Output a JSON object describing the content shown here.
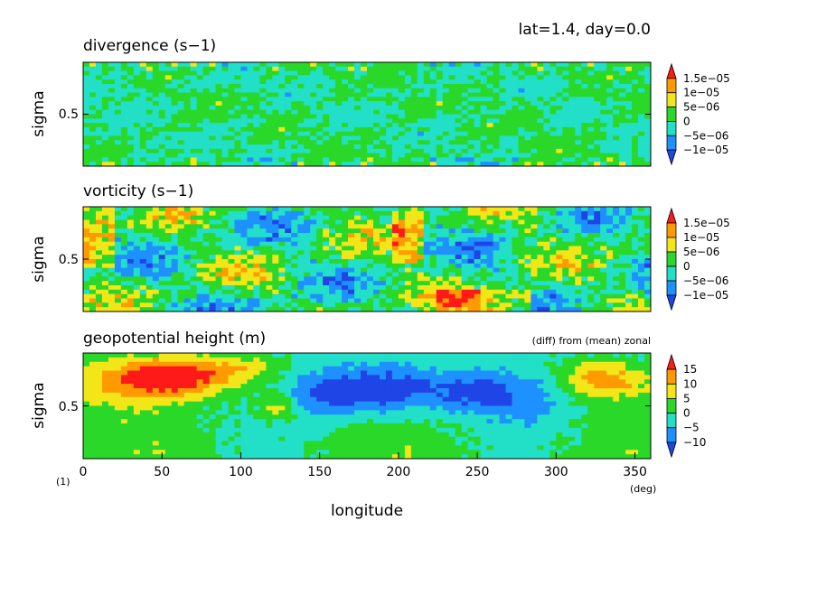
{
  "header": {
    "text": "lat=1.4, day=0.0"
  },
  "colors": {
    "levels": [
      "#1f45e6",
      "#1e90ff",
      "#22dfc8",
      "#2ad82a",
      "#f2e619",
      "#ff9b00",
      "#ff1a1a"
    ]
  },
  "chart_data": [
    {
      "type": "heatmap",
      "title": "divergence (s−1)",
      "ylabel": "sigma",
      "yticks": [
        "0.5"
      ],
      "xlim": [
        0,
        360
      ],
      "ylim": [
        0,
        1
      ],
      "colorbar_labels": [
        "1.5e−05",
        "1e−05",
        "5e−06",
        "0",
        "−5e−06",
        "−1e−05"
      ],
      "colorbar_levels": [
        1.5e-05,
        1e-05,
        5e-06,
        0,
        -5e-06,
        -1e-05
      ]
    },
    {
      "type": "heatmap",
      "title": "vorticity (s−1)",
      "ylabel": "sigma",
      "yticks": [
        "0.5"
      ],
      "xlim": [
        0,
        360
      ],
      "ylim": [
        0,
        1
      ],
      "colorbar_labels": [
        "1.5e−05",
        "1e−05",
        "5e−06",
        "0",
        "−5e−06",
        "−1e−05"
      ],
      "colorbar_levels": [
        1.5e-05,
        1e-05,
        5e-06,
        0,
        -5e-06,
        -1e-05
      ]
    },
    {
      "type": "heatmap",
      "title": "geopotential height (m)",
      "subtitle": "(diff) from (mean) zonal",
      "ylabel": "sigma",
      "yticks": [
        "0.5"
      ],
      "xlabel": "longitude",
      "xunit": "(deg)",
      "corner_label": "(1)",
      "xticks": [
        "0",
        "50",
        "100",
        "150",
        "200",
        "250",
        "300",
        "350"
      ],
      "xtick_values": [
        0,
        50,
        100,
        150,
        200,
        250,
        300,
        350
      ],
      "xlim": [
        0,
        360
      ],
      "ylim": [
        0,
        1
      ],
      "colorbar_labels": [
        "15",
        "10",
        "5",
        "0",
        "−5",
        "−10"
      ],
      "colorbar_levels": [
        15,
        10,
        5,
        0,
        -5,
        -10
      ]
    }
  ]
}
